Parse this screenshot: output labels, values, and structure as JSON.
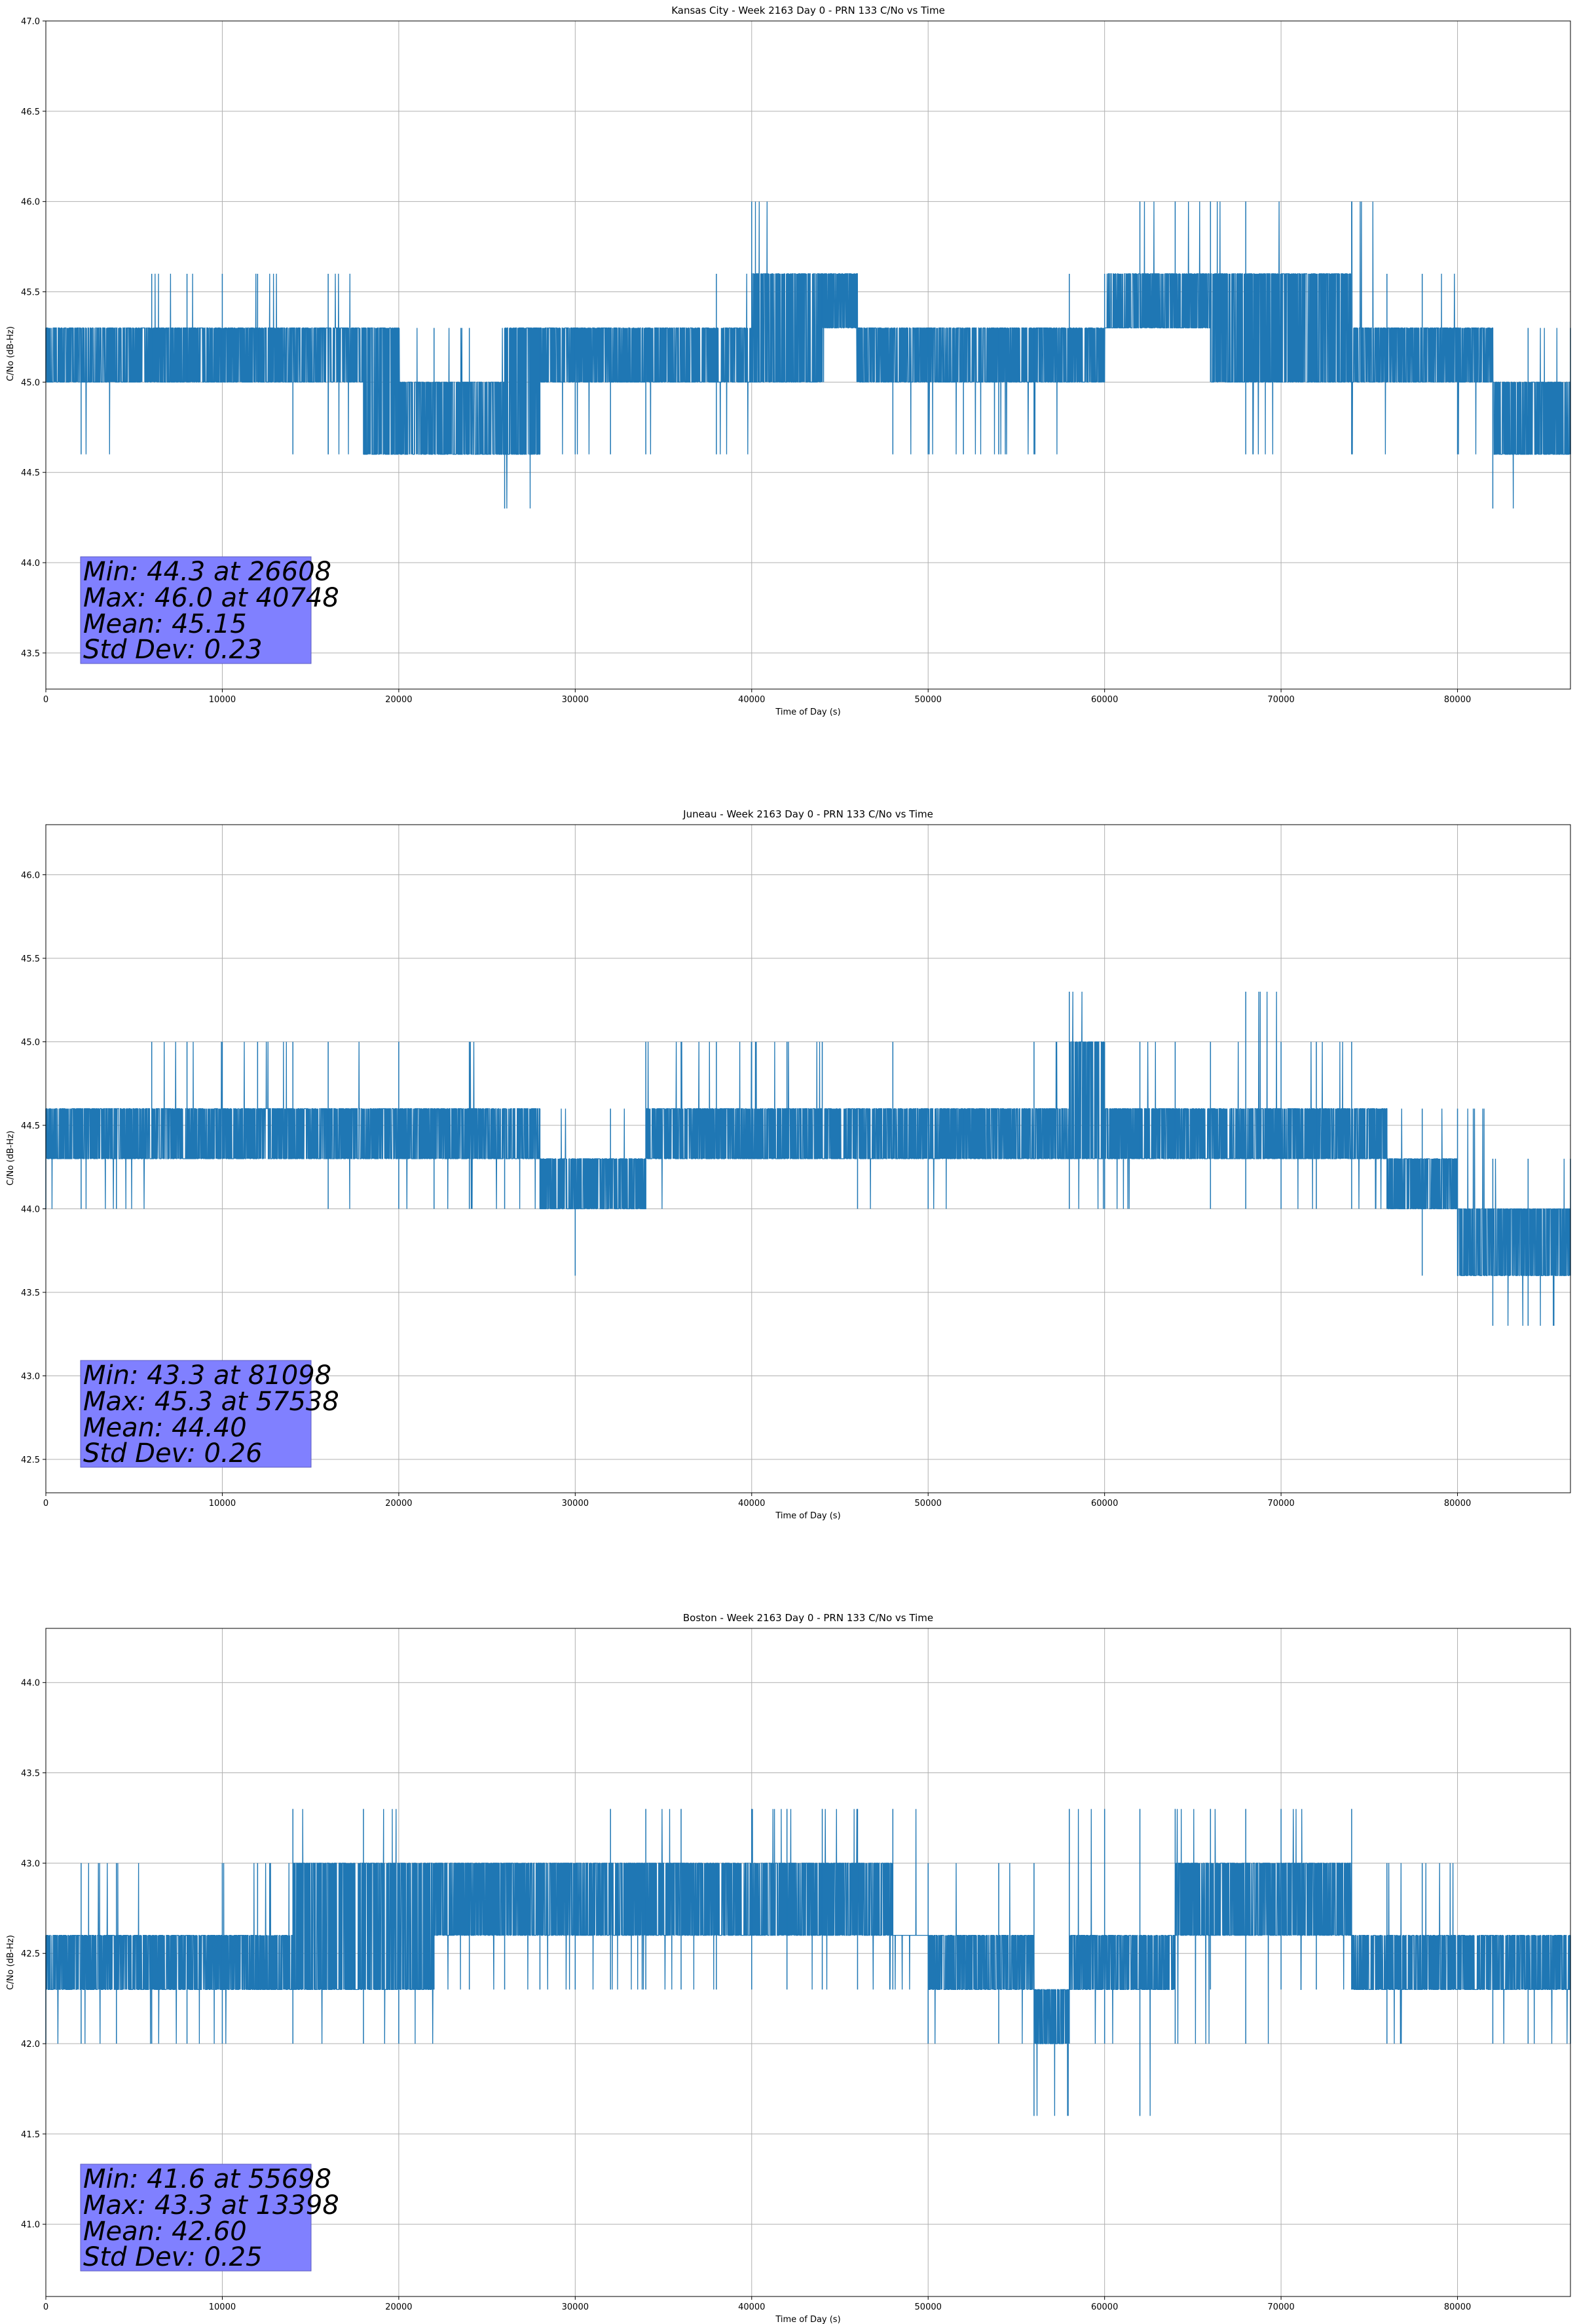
{
  "figure": {
    "line_color": "#1f77b4",
    "grid_color": "#b0b0b0",
    "stats_box_color": "#8080ff"
  },
  "chart_data": [
    {
      "type": "line",
      "title": "Kansas City - Week 2163 Day 0 - PRN 133 C/No vs Time",
      "xlabel": "Time of Day (s)",
      "ylabel": "C/No (dB-Hz)",
      "xlim": [
        0,
        86400
      ],
      "ylim": [
        43.3,
        47.0
      ],
      "xticks": [
        0,
        10000,
        20000,
        30000,
        40000,
        50000,
        60000,
        70000,
        80000
      ],
      "yticks": [
        43.5,
        44.0,
        44.5,
        45.0,
        45.5,
        46.0,
        46.5,
        47.0
      ],
      "grid": true,
      "series": [
        {
          "x": [
            0,
            2000,
            4000,
            6000,
            8000,
            10000,
            12000,
            14000,
            16000,
            18000,
            20000,
            22000,
            24000,
            26000,
            28000,
            30000,
            32000,
            34000,
            36000,
            38000,
            40000,
            42000,
            44000,
            46000,
            48000,
            50000,
            52000,
            54000,
            56000,
            58000,
            60000,
            62000,
            64000,
            66000,
            68000,
            70000,
            72000,
            74000,
            76000,
            78000,
            80000,
            82000,
            84000,
            86400
          ],
          "y_low": [
            45.0,
            44.6,
            45.0,
            45.0,
            45.0,
            45.0,
            45.0,
            44.6,
            44.6,
            44.6,
            44.6,
            44.6,
            44.6,
            44.3,
            44.6,
            44.6,
            44.6,
            44.6,
            45.0,
            44.6,
            45.0,
            45.0,
            45.0,
            45.0,
            44.6,
            44.6,
            44.6,
            44.6,
            44.6,
            45.0,
            45.3,
            45.3,
            45.3,
            45.0,
            44.6,
            45.0,
            45.0,
            44.6,
            45.0,
            45.0,
            44.6,
            44.3,
            44.6,
            44.6
          ],
          "y_high": [
            45.3,
            45.3,
            45.3,
            45.6,
            45.6,
            45.6,
            45.6,
            45.3,
            45.6,
            45.3,
            45.3,
            45.3,
            45.3,
            45.3,
            45.3,
            45.3,
            45.3,
            45.3,
            45.3,
            45.6,
            46.0,
            45.6,
            45.6,
            45.3,
            45.3,
            45.3,
            45.3,
            45.3,
            45.3,
            45.6,
            45.6,
            46.0,
            46.0,
            46.0,
            46.0,
            45.6,
            45.6,
            46.0,
            45.6,
            45.6,
            45.3,
            45.3,
            45.3,
            45.3
          ],
          "dense_low": [
            45.0,
            45.0,
            45.0,
            45.0,
            45.0,
            45.0,
            45.0,
            45.0,
            45.0,
            44.6,
            44.6,
            44.6,
            44.6,
            44.6,
            45.0,
            45.0,
            45.0,
            45.0,
            45.0,
            45.0,
            45.0,
            45.0,
            45.3,
            45.0,
            45.0,
            45.0,
            45.0,
            45.0,
            45.0,
            45.0,
            45.3,
            45.3,
            45.3,
            45.0,
            45.0,
            45.0,
            45.0,
            45.0,
            45.0,
            45.0,
            45.0,
            44.6,
            44.6,
            44.6
          ],
          "dense_high": [
            45.3,
            45.3,
            45.3,
            45.3,
            45.3,
            45.3,
            45.3,
            45.3,
            45.3,
            45.3,
            45.0,
            45.0,
            45.0,
            45.3,
            45.3,
            45.3,
            45.3,
            45.3,
            45.3,
            45.3,
            45.6,
            45.6,
            45.6,
            45.3,
            45.3,
            45.3,
            45.3,
            45.3,
            45.3,
            45.3,
            45.6,
            45.6,
            45.6,
            45.6,
            45.6,
            45.6,
            45.6,
            45.3,
            45.3,
            45.3,
            45.3,
            45.0,
            45.0,
            45.0
          ]
        }
      ],
      "annotations": [
        "Min: 44.3 at 26608",
        "Max: 46.0 at 40748",
        "Mean: 45.15",
        "Std Dev: 0.23"
      ]
    },
    {
      "type": "line",
      "title": "Juneau - Week 2163 Day 0 - PRN 133 C/No vs Time",
      "xlabel": "Time of Day (s)",
      "ylabel": "C/No (dB-Hz)",
      "xlim": [
        0,
        86400
      ],
      "ylim": [
        42.3,
        46.3
      ],
      "xticks": [
        0,
        10000,
        20000,
        30000,
        40000,
        50000,
        60000,
        70000,
        80000
      ],
      "yticks": [
        42.5,
        43.0,
        43.5,
        44.0,
        44.5,
        45.0,
        45.5,
        46.0
      ],
      "grid": true,
      "series": [
        {
          "x": [
            0,
            2000,
            4000,
            6000,
            8000,
            10000,
            12000,
            14000,
            16000,
            18000,
            20000,
            22000,
            24000,
            26000,
            28000,
            30000,
            32000,
            34000,
            36000,
            38000,
            40000,
            42000,
            44000,
            46000,
            48000,
            50000,
            52000,
            54000,
            56000,
            58000,
            60000,
            62000,
            64000,
            66000,
            68000,
            70000,
            72000,
            74000,
            76000,
            78000,
            80000,
            82000,
            84000,
            86400
          ],
          "y_low": [
            44.0,
            44.0,
            44.0,
            44.3,
            44.3,
            44.3,
            44.3,
            44.3,
            44.0,
            44.3,
            44.0,
            44.0,
            44.0,
            44.0,
            44.0,
            43.6,
            44.0,
            44.0,
            44.3,
            44.3,
            44.3,
            44.3,
            44.3,
            44.0,
            44.3,
            44.0,
            44.3,
            44.3,
            44.3,
            44.0,
            44.0,
            44.3,
            44.3,
            44.0,
            44.0,
            44.0,
            44.0,
            44.0,
            44.0,
            43.6,
            43.6,
            43.3,
            43.3,
            43.6
          ],
          "y_high": [
            44.6,
            44.6,
            44.6,
            45.0,
            45.0,
            45.0,
            45.0,
            45.0,
            45.0,
            44.6,
            45.0,
            44.6,
            45.0,
            44.6,
            44.6,
            44.3,
            44.6,
            45.0,
            45.0,
            45.0,
            45.0,
            45.0,
            45.0,
            44.6,
            45.0,
            44.6,
            44.6,
            44.6,
            45.0,
            45.3,
            45.0,
            45.0,
            45.0,
            45.0,
            45.3,
            45.0,
            45.0,
            45.0,
            44.6,
            44.6,
            44.6,
            44.3,
            44.3,
            44.3
          ],
          "dense_low": [
            44.3,
            44.3,
            44.3,
            44.3,
            44.3,
            44.3,
            44.3,
            44.3,
            44.3,
            44.3,
            44.3,
            44.3,
            44.3,
            44.3,
            44.0,
            44.0,
            44.0,
            44.3,
            44.3,
            44.3,
            44.3,
            44.3,
            44.3,
            44.3,
            44.3,
            44.3,
            44.3,
            44.3,
            44.3,
            44.3,
            44.3,
            44.3,
            44.3,
            44.3,
            44.3,
            44.3,
            44.3,
            44.3,
            44.0,
            44.0,
            43.6,
            43.6,
            43.6,
            43.6
          ],
          "dense_high": [
            44.6,
            44.6,
            44.6,
            44.6,
            44.6,
            44.6,
            44.6,
            44.6,
            44.6,
            44.6,
            44.6,
            44.6,
            44.6,
            44.6,
            44.3,
            44.3,
            44.3,
            44.6,
            44.6,
            44.6,
            44.6,
            44.6,
            44.6,
            44.6,
            44.6,
            44.6,
            44.6,
            44.6,
            44.6,
            45.0,
            44.6,
            44.6,
            44.6,
            44.6,
            44.6,
            44.6,
            44.6,
            44.6,
            44.3,
            44.3,
            44.0,
            44.0,
            44.0,
            44.0
          ]
        }
      ],
      "annotations": [
        "Min: 43.3 at 81098",
        "Max: 45.3 at 57538",
        "Mean: 44.40",
        "Std Dev: 0.26"
      ]
    },
    {
      "type": "line",
      "title": "Boston - Week 2163 Day 0 - PRN 133 C/No vs Time",
      "xlabel": "Time of Day (s)",
      "ylabel": "C/No (dB-Hz)",
      "xlim": [
        0,
        86400
      ],
      "ylim": [
        40.6,
        44.3
      ],
      "xticks": [
        0,
        10000,
        20000,
        30000,
        40000,
        50000,
        60000,
        70000,
        80000
      ],
      "yticks": [
        41.0,
        41.5,
        42.0,
        42.5,
        43.0,
        43.5,
        44.0
      ],
      "grid": true,
      "series": [
        {
          "x": [
            0,
            2000,
            4000,
            6000,
            8000,
            10000,
            12000,
            14000,
            16000,
            18000,
            20000,
            22000,
            24000,
            26000,
            28000,
            30000,
            32000,
            34000,
            36000,
            38000,
            40000,
            42000,
            44000,
            46000,
            48000,
            50000,
            52000,
            54000,
            56000,
            58000,
            60000,
            62000,
            64000,
            66000,
            68000,
            70000,
            72000,
            74000,
            76000,
            78000,
            80000,
            82000,
            84000,
            86400
          ],
          "y_low": [
            42.0,
            42.0,
            42.0,
            42.0,
            42.0,
            42.0,
            42.3,
            42.0,
            42.3,
            42.0,
            42.0,
            42.3,
            42.3,
            42.3,
            42.3,
            42.3,
            42.3,
            42.3,
            42.3,
            42.3,
            42.3,
            42.3,
            42.3,
            42.3,
            42.3,
            42.0,
            42.3,
            42.0,
            41.6,
            42.0,
            42.0,
            41.6,
            42.0,
            42.3,
            42.0,
            42.3,
            42.3,
            42.3,
            42.0,
            42.3,
            42.3,
            42.0,
            42.0,
            42.0
          ],
          "y_high": [
            42.6,
            43.0,
            43.0,
            42.6,
            42.6,
            43.0,
            43.0,
            43.3,
            43.0,
            43.3,
            43.0,
            43.0,
            43.0,
            43.0,
            43.0,
            43.0,
            43.3,
            43.3,
            43.3,
            43.0,
            43.3,
            43.3,
            43.3,
            43.3,
            43.3,
            43.0,
            42.6,
            43.0,
            43.0,
            43.3,
            43.3,
            43.3,
            43.3,
            43.3,
            43.3,
            43.3,
            43.0,
            43.3,
            43.0,
            43.0,
            42.6,
            42.6,
            42.6,
            42.6
          ],
          "dense_low": [
            42.3,
            42.3,
            42.3,
            42.3,
            42.3,
            42.3,
            42.3,
            42.3,
            42.3,
            42.3,
            42.3,
            42.6,
            42.6,
            42.6,
            42.6,
            42.6,
            42.6,
            42.6,
            42.6,
            42.6,
            42.6,
            42.6,
            42.6,
            42.6,
            42.6,
            42.3,
            42.3,
            42.3,
            42.0,
            42.3,
            42.3,
            42.3,
            42.6,
            42.6,
            42.6,
            42.6,
            42.6,
            42.3,
            42.3,
            42.3,
            42.3,
            42.3,
            42.3,
            42.3
          ],
          "dense_high": [
            42.6,
            42.6,
            42.6,
            42.6,
            42.6,
            42.6,
            42.6,
            43.0,
            43.0,
            43.0,
            43.0,
            43.0,
            43.0,
            43.0,
            43.0,
            43.0,
            43.0,
            43.0,
            43.0,
            43.0,
            43.0,
            43.0,
            43.0,
            43.0,
            42.6,
            42.6,
            42.6,
            42.6,
            42.3,
            42.6,
            42.6,
            42.6,
            43.0,
            43.0,
            43.0,
            43.0,
            43.0,
            42.6,
            42.6,
            42.6,
            42.6,
            42.6,
            42.6,
            42.6
          ]
        }
      ],
      "annotations": [
        "Min: 41.6 at 55698",
        "Max: 43.3 at 13398",
        "Mean: 42.60",
        "Std Dev: 0.25"
      ]
    }
  ]
}
